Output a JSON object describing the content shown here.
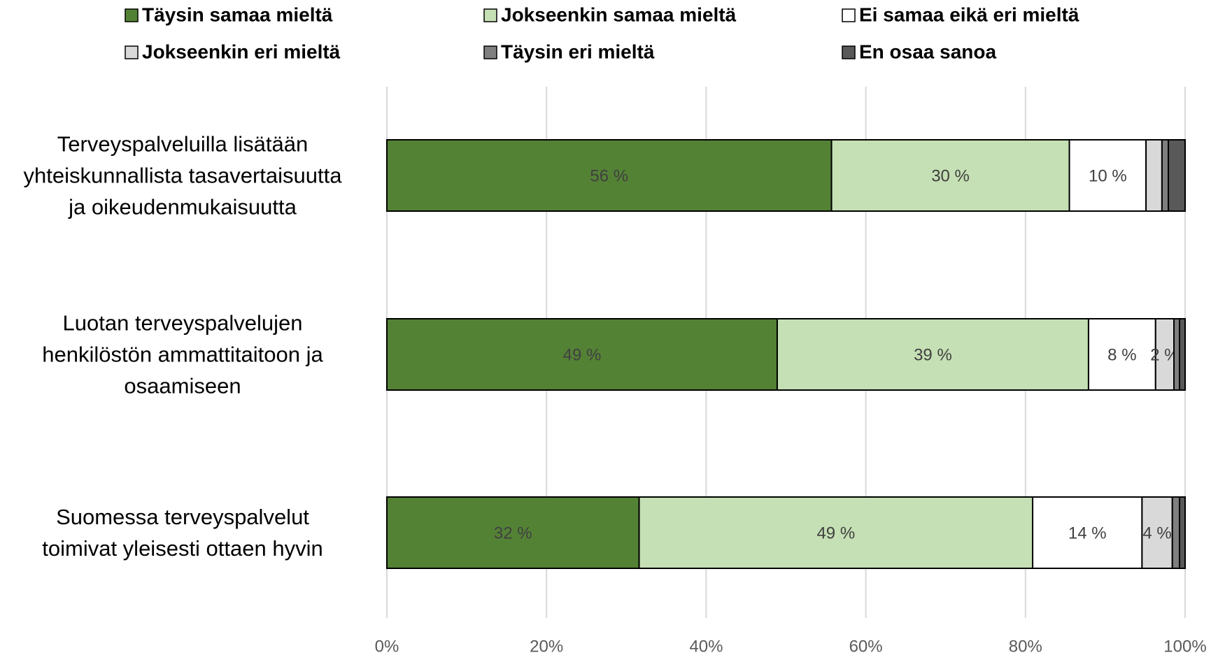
{
  "chart_data": {
    "type": "stacked-barh",
    "categories": [
      "Terveyspalveluilla lisätään\nyhteiskunnallista tasavertaisuutta\nja oikeudenmukaisuutta",
      "Luotan terveyspalvelujen\nhenkilöstön ammattitaitoon ja\nosaamiseen",
      "Suomessa terveyspalvelut\ntoimivat yleisesti ottaen hyvin"
    ],
    "series": [
      {
        "name": "Täysin samaa mieltä",
        "color": "#548235",
        "values": [
          55.7,
          48.9,
          31.6
        ],
        "value_labels": [
          "56 %",
          "49 %",
          "32 %"
        ]
      },
      {
        "name": "Jokseenkin samaa mieltä",
        "color": "#c5e0b4",
        "values": [
          29.8,
          39.0,
          49.3
        ],
        "value_labels": [
          "30 %",
          "39 %",
          "49 %"
        ]
      },
      {
        "name": "Ei samaa eikä eri mieltä",
        "color": "#ffffff",
        "values": [
          9.6,
          8.4,
          13.7
        ],
        "value_labels": [
          "10 %",
          "8 %",
          "14 %"
        ]
      },
      {
        "name": "Jokseenkin eri mieltä",
        "color": "#d9d9d9",
        "values": [
          2.0,
          2.3,
          3.8
        ],
        "value_labels": [
          null,
          "2 %",
          "4 %"
        ]
      },
      {
        "name": "Täysin eri mieltä",
        "color": "#7f7f7f",
        "values": [
          0.8,
          0.7,
          0.9
        ]
      },
      {
        "name": "En osaa sanoa",
        "color": "#595959",
        "values": [
          2.1,
          0.7,
          0.7
        ]
      }
    ],
    "xlim": [
      0,
      100
    ],
    "xticks": [
      {
        "value": 0,
        "label": "0%"
      },
      {
        "value": 20,
        "label": "20%"
      },
      {
        "value": 40,
        "label": "40%"
      },
      {
        "value": 60,
        "label": "60%"
      },
      {
        "value": 80,
        "label": "80%"
      },
      {
        "value": 100,
        "label": "100%"
      }
    ],
    "grid": true,
    "legend": "top"
  }
}
